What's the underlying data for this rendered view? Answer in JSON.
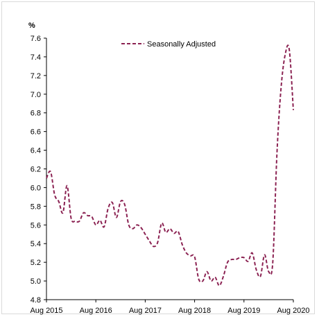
{
  "chart_data": {
    "type": "line",
    "title": "",
    "xlabel": "",
    "ylabel": "%",
    "ylim": [
      4.8,
      7.6
    ],
    "yticks": [
      "4.8",
      "5.0",
      "5.2",
      "5.4",
      "5.6",
      "5.8",
      "6.0",
      "6.2",
      "6.4",
      "6.6",
      "6.8",
      "7.0",
      "7.2",
      "7.4",
      "7.6"
    ],
    "x_tick_labels": [
      "Aug 2015",
      "Aug 2016",
      "Aug 2017",
      "Aug 2018",
      "Aug 2019",
      "Aug 2020"
    ],
    "x_range_months": "Aug 2015 – Aug 2020",
    "legend_position": "top-center",
    "series": [
      {
        "name": "Seasonally Adjusted",
        "color": "#8b2252",
        "dash": "dashed",
        "x": [
          "Aug 2015",
          "Sep 2015",
          "Oct 2015",
          "Nov 2015",
          "Dec 2015",
          "Jan 2016",
          "Feb 2016",
          "Mar 2016",
          "Apr 2016",
          "May 2016",
          "Jun 2016",
          "Jul 2016",
          "Aug 2016",
          "Sep 2016",
          "Oct 2016",
          "Nov 2016",
          "Dec 2016",
          "Jan 2017",
          "Feb 2017",
          "Mar 2017",
          "Apr 2017",
          "May 2017",
          "Jun 2017",
          "Jul 2017",
          "Aug 2017",
          "Sep 2017",
          "Oct 2017",
          "Nov 2017",
          "Dec 2017",
          "Jan 2018",
          "Feb 2018",
          "Mar 2018",
          "Apr 2018",
          "May 2018",
          "Jun 2018",
          "Jul 2018",
          "Aug 2018",
          "Sep 2018",
          "Oct 2018",
          "Nov 2018",
          "Dec 2018",
          "Jan 2019",
          "Feb 2019",
          "Mar 2019",
          "Apr 2019",
          "May 2019",
          "Jun 2019",
          "Jul 2019",
          "Aug 2019",
          "Sep 2019",
          "Oct 2019",
          "Nov 2019",
          "Dec 2019",
          "Jan 2020",
          "Feb 2020",
          "Mar 2020",
          "Apr 2020",
          "May 2020",
          "Jun 2020",
          "Jul 2020",
          "Aug 2020"
        ],
        "values": [
          6.1,
          6.17,
          5.92,
          5.85,
          5.73,
          6.02,
          5.67,
          5.64,
          5.64,
          5.73,
          5.7,
          5.69,
          5.6,
          5.65,
          5.58,
          5.78,
          5.84,
          5.68,
          5.85,
          5.82,
          5.6,
          5.56,
          5.6,
          5.57,
          5.5,
          5.43,
          5.37,
          5.41,
          5.62,
          5.52,
          5.56,
          5.51,
          5.53,
          5.39,
          5.3,
          5.27,
          5.26,
          5.02,
          5.0,
          5.1,
          5.0,
          5.04,
          4.95,
          5.05,
          5.2,
          5.23,
          5.23,
          5.25,
          5.25,
          5.21,
          5.3,
          5.12,
          5.05,
          5.28,
          5.1,
          5.2,
          6.35,
          7.06,
          7.42,
          7.48,
          6.83
        ]
      }
    ]
  }
}
